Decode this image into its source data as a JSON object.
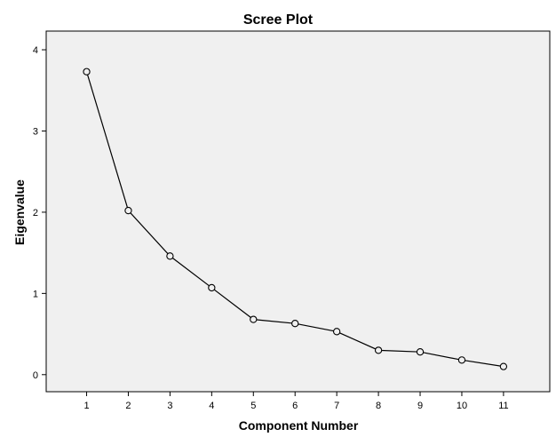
{
  "chart_data": {
    "type": "line",
    "title": "Scree Plot",
    "xlabel": "Component Number",
    "ylabel": "Eigenvalue",
    "x": [
      1,
      2,
      3,
      4,
      5,
      6,
      7,
      8,
      9,
      10,
      11
    ],
    "series": [
      {
        "values": [
          3.73,
          2.02,
          1.46,
          1.07,
          0.68,
          0.63,
          0.53,
          0.3,
          0.28,
          0.18,
          0.1
        ]
      }
    ],
    "xticks": [
      "1",
      "2",
      "3",
      "4",
      "5",
      "6",
      "7",
      "8",
      "9",
      "10",
      "11"
    ],
    "yticks": [
      "0",
      "1",
      "2",
      "3",
      "4"
    ],
    "xlim": [
      0.03,
      12.11
    ],
    "ylim": [
      -0.21,
      4.23
    ],
    "grid": false,
    "marker": "open-circle",
    "colors": {
      "plot_background": "#f0f0f0",
      "line": "#000000",
      "frame": "#000000"
    }
  }
}
